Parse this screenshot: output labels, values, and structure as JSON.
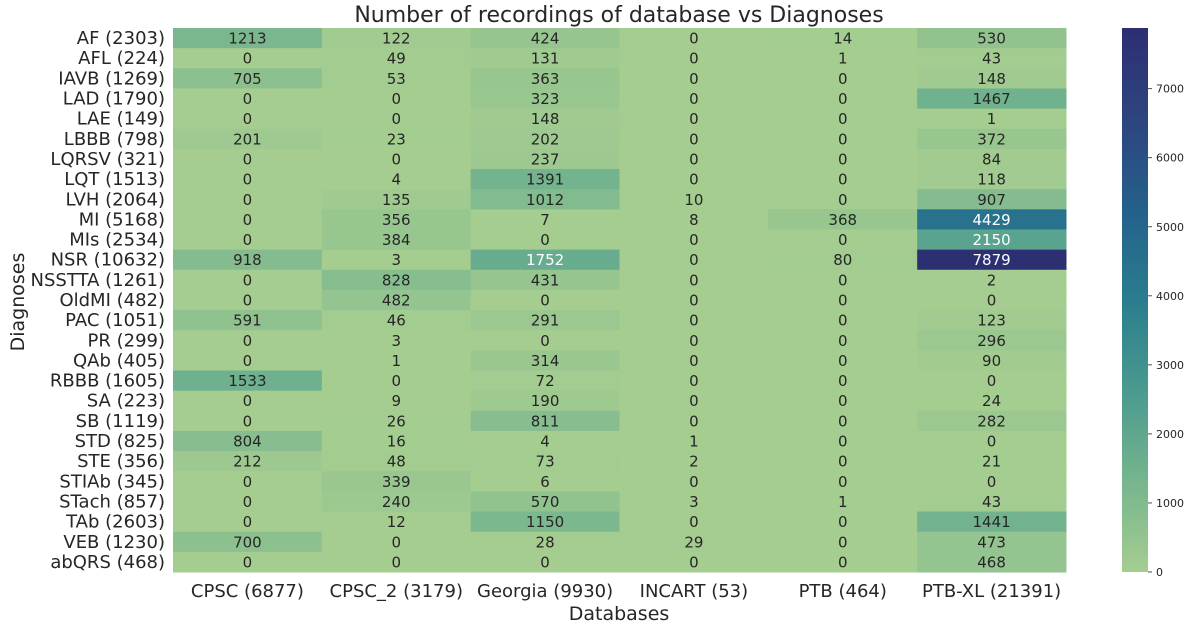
{
  "chart_data": {
    "type": "heatmap",
    "title": "Number of recordings of database vs Diagnoses",
    "xlabel": "Databases",
    "ylabel": "Diagnoses",
    "columns": [
      "CPSC (6877)",
      "CPSC_2 (3179)",
      "Georgia (9930)",
      "INCART (53)",
      "PTB (464)",
      "PTB-XL (21391)"
    ],
    "rows": [
      "AF (2303)",
      "AFL (224)",
      "IAVB (1269)",
      "LAD (1790)",
      "LAE (149)",
      "LBBB (798)",
      "LQRSV (321)",
      "LQT (1513)",
      "LVH (2064)",
      "MI (5168)",
      "MIs (2534)",
      "NSR (10632)",
      "NSSTTA (1261)",
      "OldMI (482)",
      "PAC (1051)",
      "PR (299)",
      "QAb (405)",
      "RBBB (1605)",
      "SA (223)",
      "SB (1119)",
      "STD (825)",
      "STE (356)",
      "STIAb (345)",
      "STach (857)",
      "TAb (2603)",
      "VEB (1230)",
      "abQRS (468)"
    ],
    "values": [
      [
        1213,
        122,
        424,
        0,
        14,
        530
      ],
      [
        0,
        49,
        131,
        0,
        1,
        43
      ],
      [
        705,
        53,
        363,
        0,
        0,
        148
      ],
      [
        0,
        0,
        323,
        0,
        0,
        1467
      ],
      [
        0,
        0,
        148,
        0,
        0,
        1
      ],
      [
        201,
        23,
        202,
        0,
        0,
        372
      ],
      [
        0,
        0,
        237,
        0,
        0,
        84
      ],
      [
        0,
        4,
        1391,
        0,
        0,
        118
      ],
      [
        0,
        135,
        1012,
        10,
        0,
        907
      ],
      [
        0,
        356,
        7,
        8,
        368,
        4429
      ],
      [
        0,
        384,
        0,
        0,
        0,
        2150
      ],
      [
        918,
        3,
        1752,
        0,
        80,
        7879
      ],
      [
        0,
        828,
        431,
        0,
        0,
        2
      ],
      [
        0,
        482,
        0,
        0,
        0,
        0
      ],
      [
        591,
        46,
        291,
        0,
        0,
        123
      ],
      [
        0,
        3,
        0,
        0,
        0,
        296
      ],
      [
        0,
        1,
        314,
        0,
        0,
        90
      ],
      [
        1533,
        0,
        72,
        0,
        0,
        0
      ],
      [
        0,
        9,
        190,
        0,
        0,
        24
      ],
      [
        0,
        26,
        811,
        0,
        0,
        282
      ],
      [
        804,
        16,
        4,
        1,
        0,
        0
      ],
      [
        212,
        48,
        73,
        2,
        0,
        21
      ],
      [
        0,
        339,
        6,
        0,
        0,
        0
      ],
      [
        0,
        240,
        570,
        3,
        1,
        43
      ],
      [
        0,
        12,
        1150,
        0,
        0,
        1441
      ],
      [
        700,
        0,
        28,
        29,
        0,
        473
      ],
      [
        0,
        0,
        0,
        0,
        0,
        468
      ]
    ],
    "colorbar": {
      "min": 0,
      "max": 7879,
      "ticks": [
        0,
        1000,
        2000,
        3000,
        4000,
        5000,
        6000,
        7000
      ],
      "colormap": "crest",
      "colors": [
        "#a5cd90",
        "#76b58e",
        "#4a9a8f",
        "#2a7d8e",
        "#24608b",
        "#2d447f",
        "#2c2f72"
      ]
    }
  }
}
